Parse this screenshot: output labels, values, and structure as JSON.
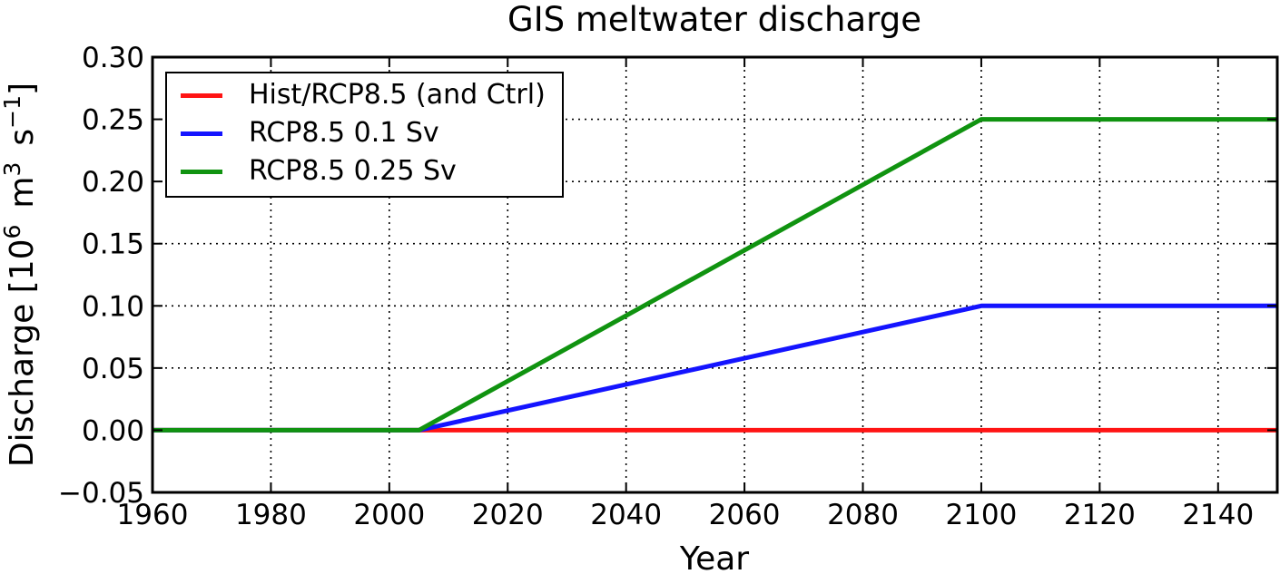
{
  "chart_data": {
    "type": "line",
    "title": "GIS meltwater discharge",
    "xlabel": "Year",
    "ylabel": "Discharge [10⁶ m³ s⁻¹]",
    "ylabel_segments": [
      {
        "text": "Discharge [10"
      },
      {
        "text": "6",
        "sup": true
      },
      {
        "text": " m"
      },
      {
        "text": "3",
        "sup": true
      },
      {
        "text": " s"
      },
      {
        "text": "−1",
        "sup": true
      },
      {
        "text": "]"
      }
    ],
    "xlim": [
      1960,
      2150
    ],
    "ylim": [
      -0.05,
      0.3
    ],
    "xticks": [
      1960,
      1980,
      2000,
      2020,
      2040,
      2060,
      2080,
      2100,
      2120,
      2140
    ],
    "yticks": [
      -0.05,
      0.0,
      0.05,
      0.1,
      0.15,
      0.2,
      0.25,
      0.3
    ],
    "grid": true,
    "grid_style": "dotted",
    "axis_color": "#000000",
    "grid_color": "#000000",
    "background_color": "#ffffff",
    "legend_position": "upper left",
    "series": [
      {
        "name": "Hist/RCP8.5 (and Ctrl)",
        "color": "#ff1414",
        "points": [
          [
            1960,
            0.0
          ],
          [
            2150,
            0.0
          ]
        ]
      },
      {
        "name": "RCP8.5 0.1 Sv",
        "color": "#1414ff",
        "points": [
          [
            1960,
            0.0
          ],
          [
            2005,
            0.0
          ],
          [
            2100,
            0.1
          ],
          [
            2150,
            0.1
          ]
        ]
      },
      {
        "name": "RCP8.5 0.25 Sv",
        "color": "#109310",
        "points": [
          [
            1960,
            0.0
          ],
          [
            2005,
            0.0
          ],
          [
            2100,
            0.25
          ],
          [
            2150,
            0.25
          ]
        ]
      }
    ]
  }
}
